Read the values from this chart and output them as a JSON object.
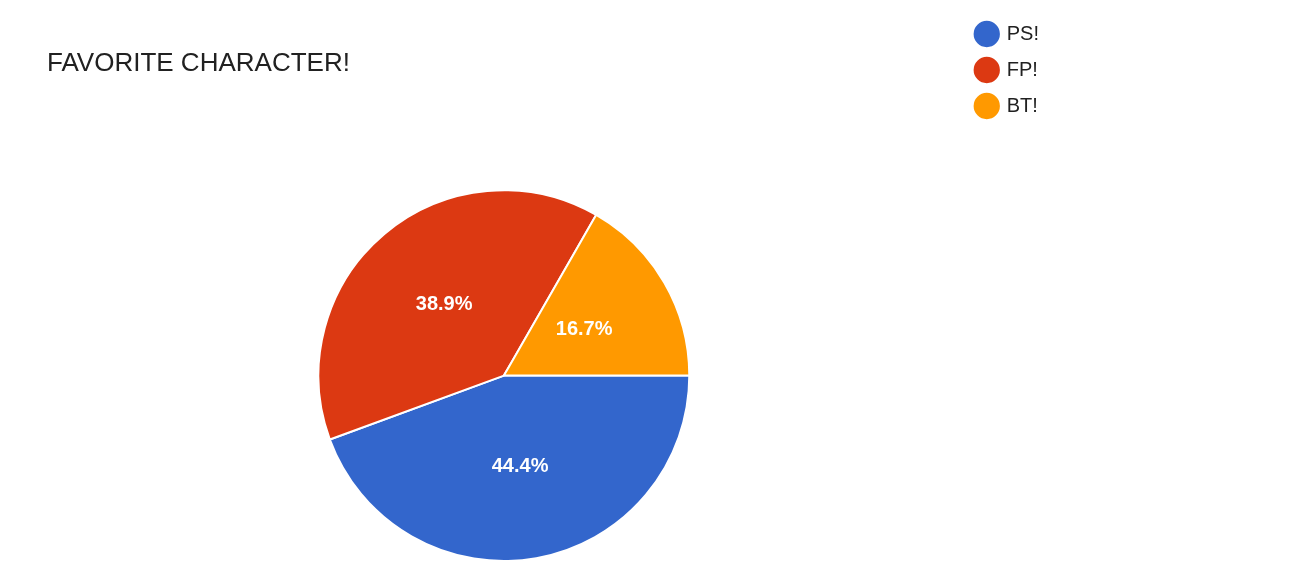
{
  "chart_data": {
    "type": "pie",
    "title": "FAVORITE CHARACTER!",
    "categories": [
      "PS!",
      "FP!",
      "BT!"
    ],
    "values": [
      44.4,
      38.9,
      16.7
    ],
    "colors": [
      "#3366cc",
      "#dc3912",
      "#ff9900"
    ],
    "value_labels": [
      "44.4%",
      "38.9%",
      "16.7%"
    ],
    "legend": "top right"
  }
}
